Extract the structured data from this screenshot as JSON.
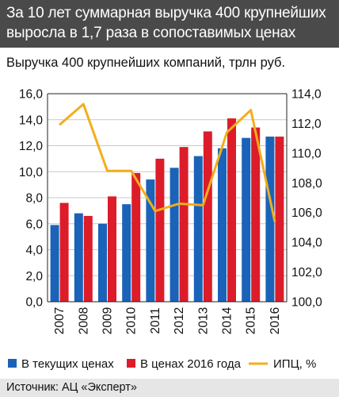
{
  "header": {
    "title_line1": "За 10 лет суммарная выручка 400 крупнейших",
    "title_line2": "выросла в 1,7 раза в сопоставимых ценах"
  },
  "subtitle": "Выручка 400 крупнейших компаний, трлн руб.",
  "source": "Источник: АЦ «Эксперт»",
  "colors": {
    "current": "#1a63b8",
    "prices2016": "#dd1c2a",
    "cpi": "#f2ae1c",
    "header_bg": "#4a4a4a",
    "footer_bg": "#e6e6e6"
  },
  "chart_data": {
    "type": "bar",
    "categories": [
      "2007",
      "2008",
      "2009",
      "2010",
      "2011",
      "2012",
      "2013",
      "2014",
      "2015",
      "2016"
    ],
    "series": [
      {
        "name": "В текущих ценах",
        "type": "bar",
        "axis": "left",
        "values": [
          5.9,
          6.8,
          6.0,
          7.5,
          9.4,
          10.3,
          11.2,
          11.8,
          12.6,
          12.7
        ]
      },
      {
        "name": "В ценах 2016 года",
        "type": "bar",
        "axis": "left",
        "values": [
          7.6,
          6.6,
          8.1,
          9.9,
          11.0,
          11.9,
          13.1,
          14.1,
          13.4,
          12.7
        ]
      },
      {
        "name": "ИПЦ, %",
        "type": "line",
        "axis": "right",
        "values": [
          111.9,
          113.3,
          108.8,
          108.8,
          106.1,
          106.6,
          106.5,
          111.4,
          112.9,
          105.4
        ]
      }
    ],
    "left_axis": {
      "min": 0,
      "max": 16,
      "step": 2,
      "tick_labels": [
        "0,0",
        "2,0",
        "4,0",
        "6,0",
        "8,0",
        "10,0",
        "12,0",
        "14,0",
        "16,0"
      ]
    },
    "right_axis": {
      "min": 100,
      "max": 114,
      "step": 2,
      "tick_labels": [
        "100,0",
        "102,0",
        "104,0",
        "106,0",
        "108,0",
        "110,0",
        "112,0",
        "114,0"
      ]
    },
    "grid": true,
    "legend_position": "bottom"
  }
}
